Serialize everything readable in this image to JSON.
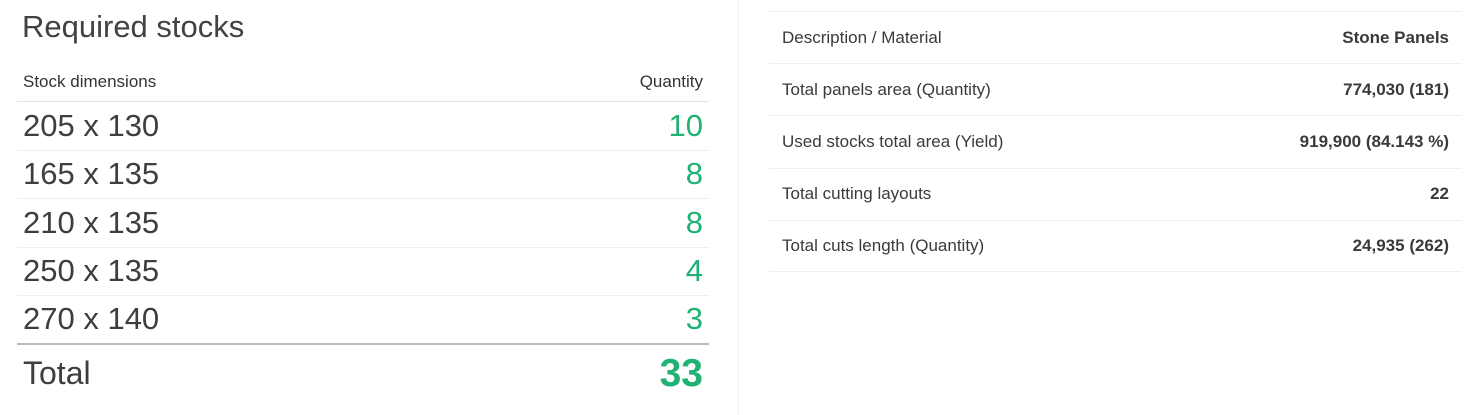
{
  "required_stocks": {
    "title": "Required stocks",
    "columns": {
      "dimensions": "Stock dimensions",
      "quantity": "Quantity"
    },
    "rows": [
      {
        "dimensions": "205 x 130",
        "quantity": "10"
      },
      {
        "dimensions": "165 x 135",
        "quantity": "8"
      },
      {
        "dimensions": "210 x 135",
        "quantity": "8"
      },
      {
        "dimensions": "250 x 135",
        "quantity": "4"
      },
      {
        "dimensions": "270 x 140",
        "quantity": "3"
      }
    ],
    "total": {
      "label": "Total",
      "quantity": "33"
    }
  },
  "summary": {
    "rows": [
      {
        "label": "Description / Material",
        "value": "Stone Panels"
      },
      {
        "label": "Total panels area (Quantity)",
        "value": "774,030 (181)"
      },
      {
        "label": "Used stocks total area (Yield)",
        "value": "919,900 (84.143 %)"
      },
      {
        "label": "Total cutting layouts",
        "value": "22"
      },
      {
        "label": "Total cuts length (Quantity)",
        "value": "24,935 (262)"
      }
    ]
  },
  "colors": {
    "accent_green": "#1fb272",
    "text": "#333333"
  }
}
